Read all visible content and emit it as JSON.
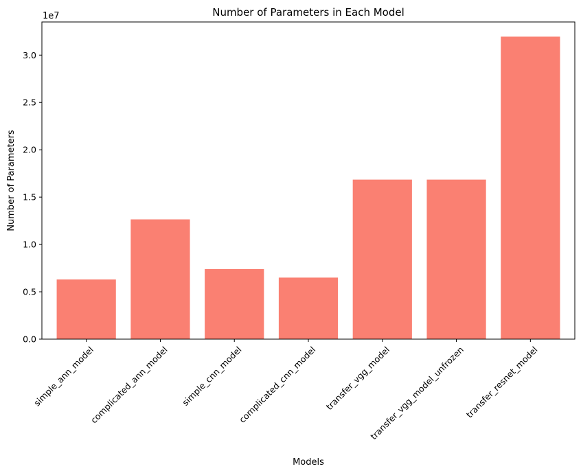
{
  "chart_data": {
    "type": "bar",
    "title": "Number of Parameters in Each Model",
    "xlabel": "Models",
    "ylabel": "Number of Parameters",
    "offset_text": "1e7",
    "categories": [
      "simple_ann_model",
      "complicated_ann_model",
      "simple_cnn_model",
      "complicated_cnn_model",
      "transfer_vgg_model",
      "transfer_vgg_model_unfrozen",
      "transfer_resnet_model"
    ],
    "values": [
      6300000,
      12650000,
      7400000,
      6500000,
      16850000,
      16850000,
      31950000
    ],
    "ylim": [
      0,
      33500000
    ],
    "yticks": [
      0,
      5000000,
      10000000,
      15000000,
      20000000,
      25000000,
      30000000
    ],
    "ytick_labels": [
      "0.0",
      "0.5",
      "1.0",
      "1.5",
      "2.0",
      "2.5",
      "3.0"
    ],
    "bar_color": "#fa8072",
    "grid": false,
    "legend": false
  }
}
